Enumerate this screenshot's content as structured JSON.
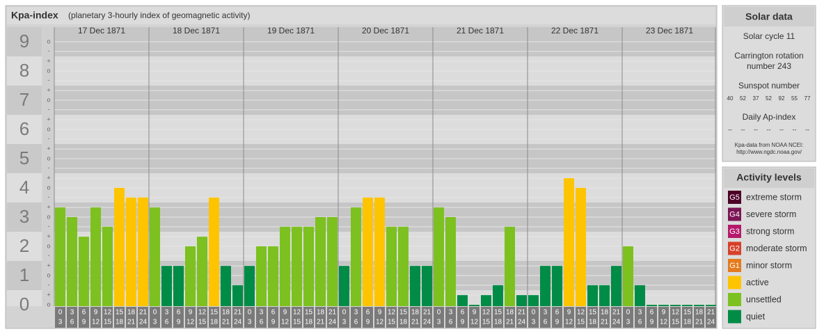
{
  "chart_data": {
    "type": "bar",
    "title": "Kpa-index",
    "subtitle": "(planetary 3-hourly index of geomagnetic activity)",
    "days": [
      "17 Dec 1871",
      "18 Dec 1871",
      "19 Dec 1871",
      "20 Dec 1871",
      "21 Dec 1871",
      "22 Dec 1871",
      "23 Dec 1871"
    ],
    "slot_starts": [
      0,
      3,
      6,
      9,
      12,
      15,
      18,
      21
    ],
    "slot_ends": [
      3,
      6,
      9,
      12,
      15,
      18,
      21,
      24
    ],
    "values": [
      3.33,
      3,
      2.33,
      3.33,
      2.67,
      4,
      3.67,
      3.67,
      3.33,
      1.33,
      1.33,
      2,
      2.33,
      3.67,
      1.33,
      0.67,
      1.33,
      2,
      2,
      2.67,
      2.67,
      2.67,
      3,
      3,
      1.33,
      3.33,
      3.67,
      3.67,
      2.67,
      2.67,
      1.33,
      1.33,
      3.33,
      3,
      0.33,
      0,
      0.33,
      0.67,
      2.67,
      0.33,
      0.33,
      1.33,
      1.33,
      4.33,
      4,
      0.67,
      0.67,
      1.33,
      2,
      0.67,
      0,
      0,
      0,
      0,
      0,
      0
    ],
    "colors": [
      "#7cc11f",
      "#7cc11f",
      "#7cc11f",
      "#7cc11f",
      "#7cc11f",
      "#ffc400",
      "#ffc400",
      "#ffc400",
      "#7cc11f",
      "#008c46",
      "#008c46",
      "#7cc11f",
      "#7cc11f",
      "#ffc400",
      "#008c46",
      "#008c46",
      "#008c46",
      "#7cc11f",
      "#7cc11f",
      "#7cc11f",
      "#7cc11f",
      "#7cc11f",
      "#7cc11f",
      "#7cc11f",
      "#008c46",
      "#7cc11f",
      "#ffc400",
      "#ffc400",
      "#7cc11f",
      "#7cc11f",
      "#008c46",
      "#008c46",
      "#7cc11f",
      "#7cc11f",
      "#008c46",
      "#008c46",
      "#008c46",
      "#008c46",
      "#7cc11f",
      "#008c46",
      "#008c46",
      "#008c46",
      "#008c46",
      "#ffc400",
      "#ffc400",
      "#008c46",
      "#008c46",
      "#008c46",
      "#7cc11f",
      "#008c46",
      "#008c46",
      "#008c46",
      "#008c46",
      "#008c46",
      "#008c46",
      "#008c46"
    ],
    "ylim": [
      0,
      9.5
    ],
    "yticks": [
      0,
      1,
      2,
      3,
      4,
      5,
      6,
      7,
      8,
      9
    ],
    "minor_ticks": [
      {
        "value": 0,
        "label": "o"
      },
      {
        "value": 0.33,
        "label": "+"
      },
      {
        "value": 0.67,
        "label": "-"
      },
      {
        "value": 1,
        "label": "o"
      },
      {
        "value": 1.33,
        "label": "+"
      },
      {
        "value": 1.67,
        "label": "-"
      },
      {
        "value": 2,
        "label": "o"
      },
      {
        "value": 2.33,
        "label": "+"
      },
      {
        "value": 2.67,
        "label": "-"
      },
      {
        "value": 3,
        "label": "o"
      },
      {
        "value": 3.33,
        "label": "+"
      },
      {
        "value": 3.67,
        "label": "-"
      },
      {
        "value": 4,
        "label": "o"
      },
      {
        "value": 4.33,
        "label": "+"
      },
      {
        "value": 4.67,
        "label": "-"
      },
      {
        "value": 5,
        "label": "o"
      },
      {
        "value": 5.33,
        "label": "+"
      },
      {
        "value": 5.67,
        "label": "-"
      },
      {
        "value": 6,
        "label": "o"
      },
      {
        "value": 6.33,
        "label": "+"
      },
      {
        "value": 6.67,
        "label": "-"
      },
      {
        "value": 7,
        "label": "o"
      },
      {
        "value": 7.33,
        "label": "+"
      },
      {
        "value": 7.67,
        "label": "-"
      },
      {
        "value": 8,
        "label": "o"
      },
      {
        "value": 8.33,
        "label": "+"
      },
      {
        "value": 8.67,
        "label": "-"
      },
      {
        "value": 9,
        "label": "o"
      }
    ]
  },
  "solar_data": {
    "title": "Solar data",
    "cycle": "Solar cycle 11",
    "rotation_line1": "Carrington rotation",
    "rotation_line2": "number 243",
    "sunspot_title": "Sunspot number",
    "sunspot_numbers": [
      40,
      52,
      37,
      52,
      92,
      55,
      77
    ],
    "ap_title": "Daily Ap-index",
    "ap_values": [
      "--",
      "--",
      "--",
      "--",
      "--",
      "--",
      "--"
    ],
    "source_line1": "Kpa-data from NOAA NCEI:",
    "source_line2": "http://www.ngdc.noaa.gov/"
  },
  "activity_levels": {
    "title": "Activity levels",
    "items": [
      {
        "badge": "G5",
        "label": "extreme storm",
        "color": "#4d0026"
      },
      {
        "badge": "G4",
        "label": "severe storm",
        "color": "#7b1555"
      },
      {
        "badge": "G3",
        "label": "strong storm",
        "color": "#b5196c"
      },
      {
        "badge": "G2",
        "label": "moderate storm",
        "color": "#d6402a"
      },
      {
        "badge": "G1",
        "label": "minor storm",
        "color": "#e47b1d"
      },
      {
        "label": "active",
        "color": "#ffc400"
      },
      {
        "label": "unsettled",
        "color": "#7cc11f"
      },
      {
        "label": "quiet",
        "color": "#008c46"
      }
    ]
  }
}
